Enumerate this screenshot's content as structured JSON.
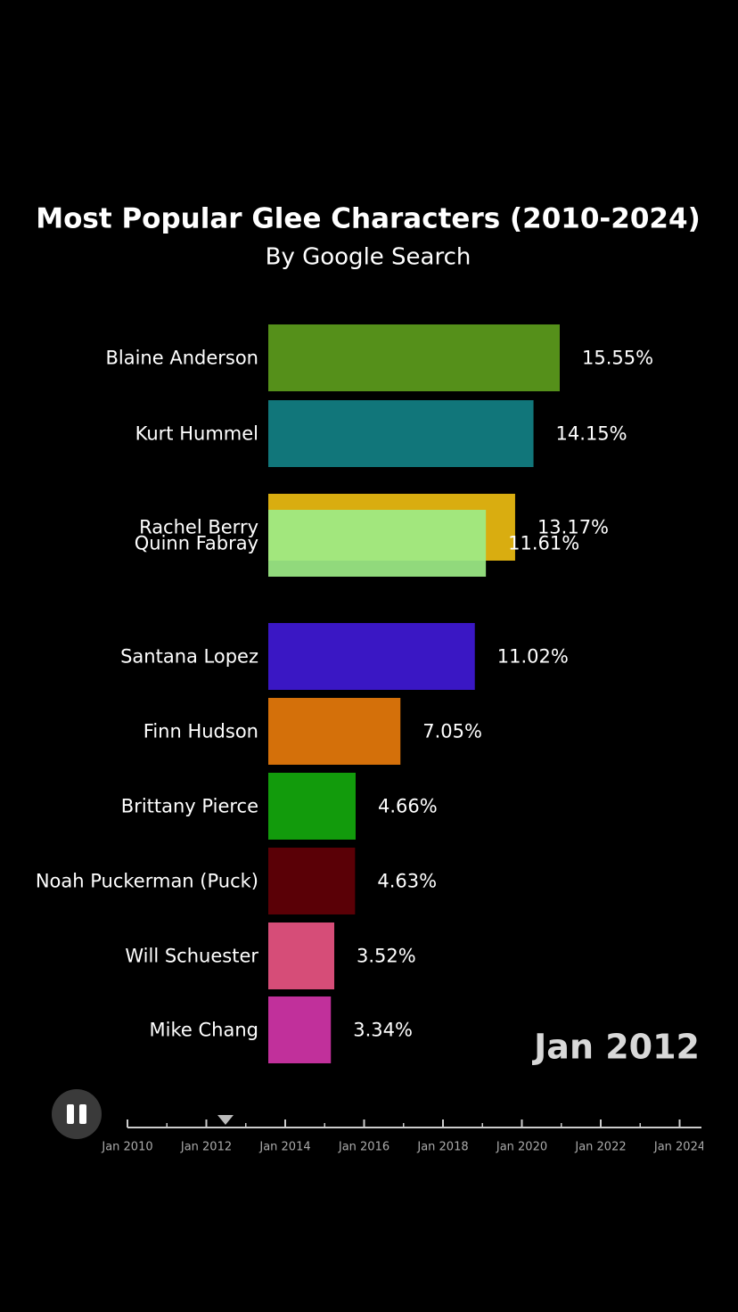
{
  "chart_data": {
    "type": "bar",
    "orientation": "horizontal",
    "title": "Most Popular Glee Characters (2010-2024)",
    "subtitle": "By Google Search",
    "categories": [
      "Blaine Anderson",
      "Kurt Hummel",
      "Rachel Berry",
      "Quinn Fabray",
      "Santana Lopez",
      "Finn Hudson",
      "Brittany Pierce",
      "Noah Puckerman (Puck)",
      "Will Schuester",
      "Mike Chang"
    ],
    "values": [
      15.55,
      14.15,
      13.17,
      11.61,
      11.02,
      7.05,
      4.66,
      4.63,
      3.52,
      3.34
    ],
    "value_labels": [
      "15.55%",
      "14.15%",
      "13.17%",
      "11.61%",
      "11.02%",
      "7.05%",
      "4.66%",
      "4.63%",
      "3.52%",
      "3.34%"
    ],
    "colors": [
      "#55901a",
      "#11767a",
      "#d9ad10",
      "#9deb87",
      "#3a17c4",
      "#d4700a",
      "#129b0c",
      "#5a0006",
      "#d64d78",
      "#c1309b"
    ],
    "date": "Jan 2012"
  },
  "timeline": {
    "ticks": [
      "Jan 2010",
      "Jan 2012",
      "Jan 2014",
      "Jan 2016",
      "Jan 2018",
      "Jan 2020",
      "Jan 2022",
      "Jan 2024"
    ]
  }
}
